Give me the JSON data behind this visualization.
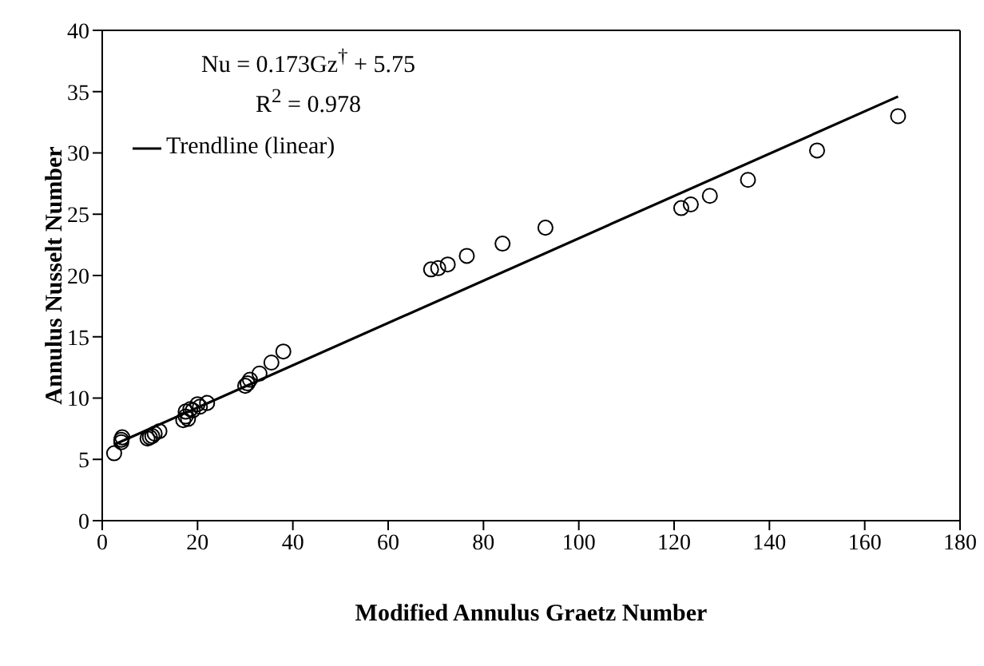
{
  "chart_data": {
    "type": "scatter",
    "xlabel": "Modified Annulus Graetz Number",
    "ylabel": "Annulus Nusselt Number",
    "annotations": [
      "Nu = 0.173Gz$^{†}$ + 5.75",
      "R$^{2}$ = 0.978"
    ],
    "series": [
      {
        "color": "#000000",
        "marker": "circle",
        "x": [
          2.5,
          4,
          4,
          4.2,
          9.5,
          10,
          10.5,
          11,
          12,
          17,
          17.5,
          17.5,
          18,
          18.5,
          19,
          20,
          20.5,
          22,
          30,
          30.5,
          31,
          33,
          35.5,
          38,
          69,
          70.5,
          72.5,
          76.5,
          84,
          93,
          121.5,
          123.5,
          127.5,
          135.5,
          150,
          167
        ],
        "values": [
          5.5,
          6.4,
          6.6,
          6.8,
          6.7,
          6.8,
          6.9,
          7.1,
          7.3,
          8.2,
          8.5,
          8.9,
          8.3,
          9.1,
          9.0,
          9.5,
          9.3,
          9.6,
          11,
          11.2,
          11.5,
          12,
          12.9,
          13.8,
          20.5,
          20.6,
          20.9,
          21.6,
          22.6,
          23.9,
          25.5,
          25.8,
          26.5,
          27.8,
          30.2,
          33
        ]
      },
      {
        "type": "line",
        "name": "Trendline (linear)",
        "color": "#000000",
        "marker": "none",
        "line_style": "solid",
        "x": [
          2.5,
          167
        ],
        "values": [
          6.2,
          34.6
        ]
      }
    ],
    "xlim": [
      0,
      180
    ],
    "xticks": [
      0,
      20,
      40,
      60,
      80,
      100,
      120,
      140,
      160,
      180
    ],
    "ylim": [
      0,
      40
    ],
    "yticks": [
      0,
      5,
      10,
      15,
      20,
      25,
      30,
      35,
      40
    ],
    "grid": false,
    "legend": "top left"
  }
}
